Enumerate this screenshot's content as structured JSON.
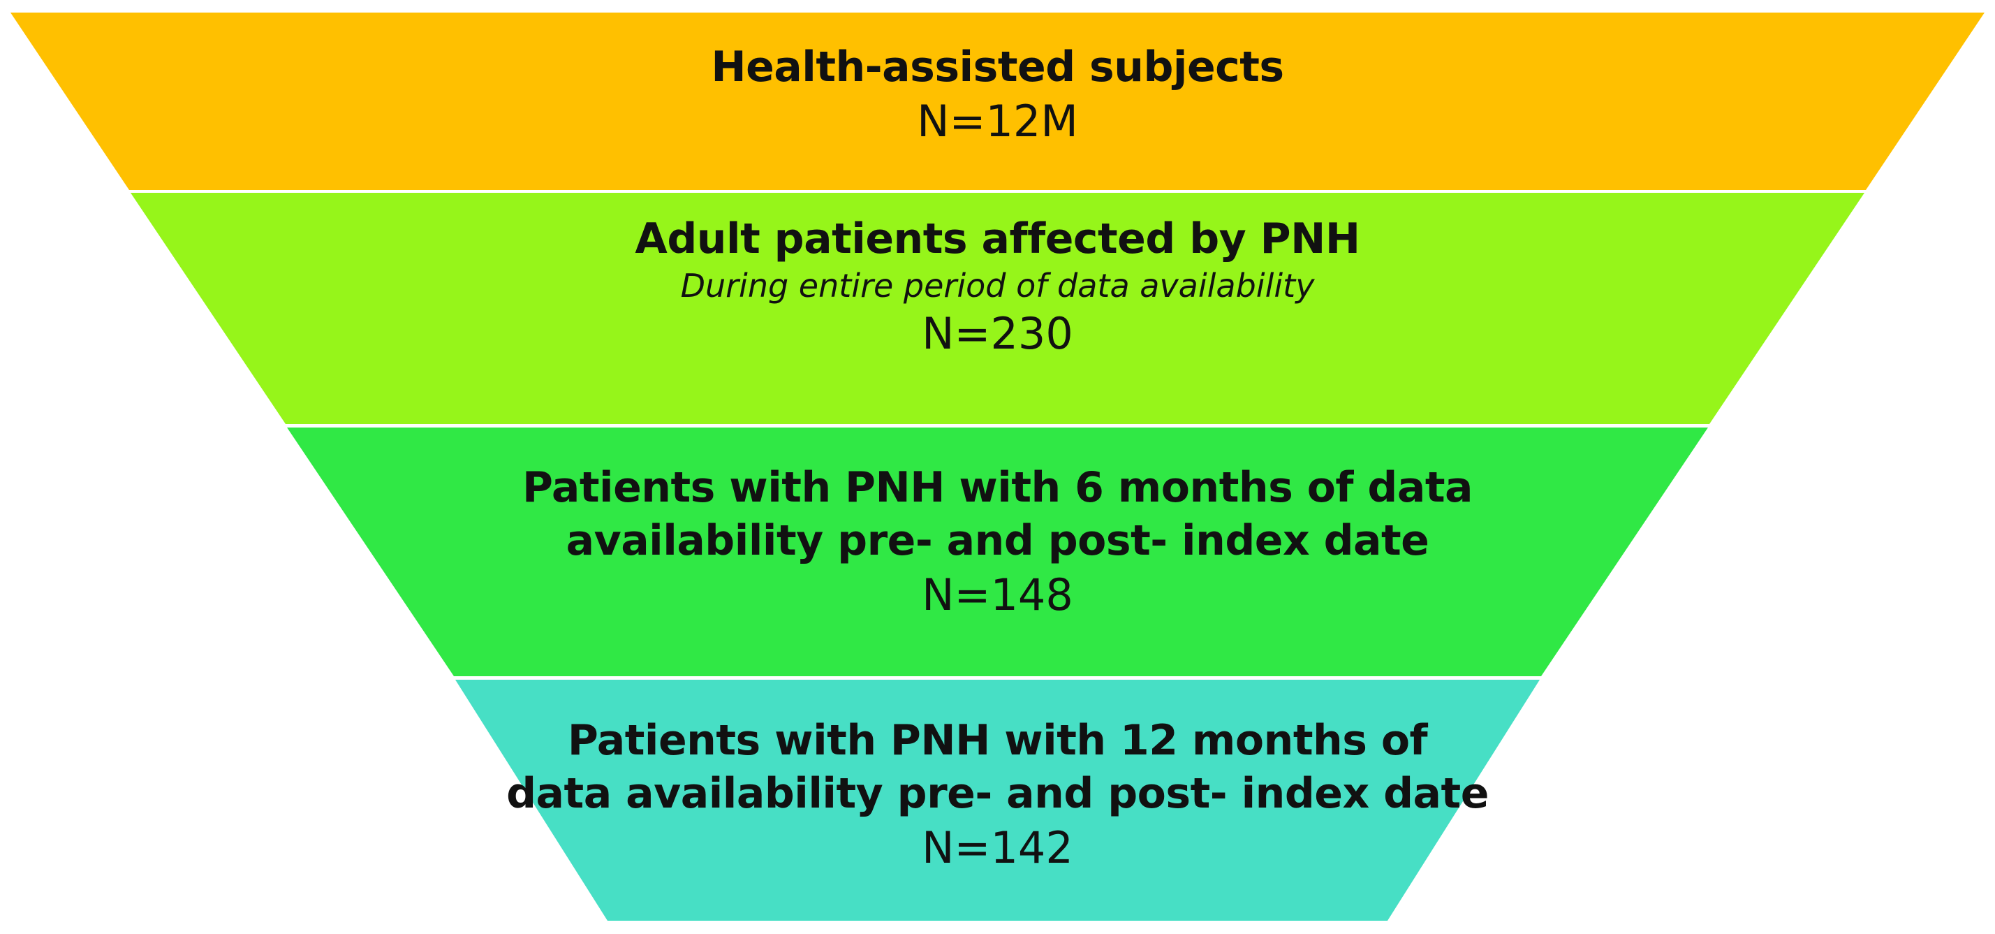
{
  "funnel": {
    "tiers": [
      {
        "title_lines": [
          "Health-assisted subjects"
        ],
        "subtitle": "",
        "count": "N=12M",
        "color": "#FFC000"
      },
      {
        "title_lines": [
          "Adult patients affected by PNH"
        ],
        "subtitle": "During entire period of data availability",
        "count": "N=230",
        "color": "#96F51A"
      },
      {
        "title_lines": [
          "Patients with PNH with 6 months of data",
          "availability pre- and post- index date"
        ],
        "subtitle": "",
        "count": "N=148",
        "color": "#30E845"
      },
      {
        "title_lines": [
          "Patients with PNH with 12 months of",
          "data availability pre- and post- index date"
        ],
        "subtitle": "",
        "count": "N=142",
        "color": "#47DFC5"
      }
    ]
  }
}
